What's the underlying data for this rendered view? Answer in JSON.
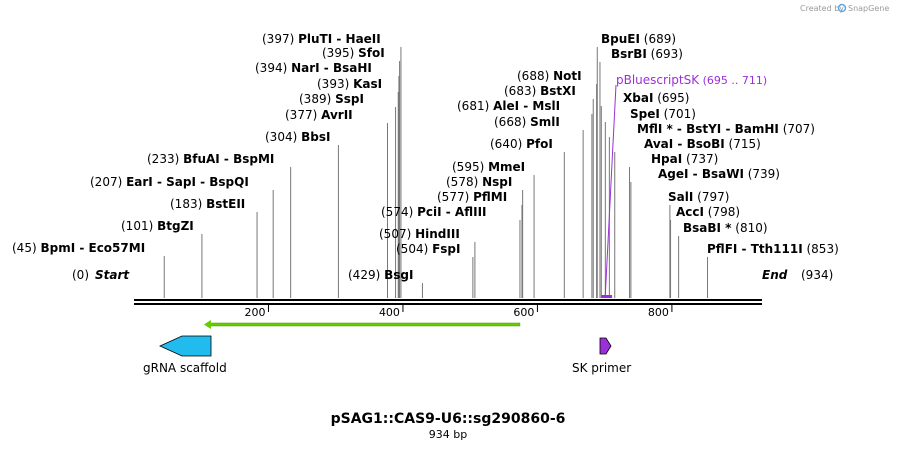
{
  "watermark": {
    "created_by": "Created by",
    "brand": "SnapGene"
  },
  "map": {
    "title": "pSAG1::CAS9-U6::sg290860-6",
    "length_label": "934 bp",
    "total_bp": 934,
    "start_label": "Start",
    "start_pos": "(0)",
    "end_label": "End",
    "end_pos": "(934)",
    "ruler_ticks": [
      "200",
      "400",
      "600",
      "800"
    ],
    "ruler_values": [
      200,
      400,
      600,
      800
    ]
  },
  "sites": [
    {
      "pos_text": "(45)",
      "names": [
        "BpmI",
        "Eco57MI"
      ],
      "cut": [
        45,
        45
      ]
    },
    {
      "pos_text": "(101)",
      "names": [
        "BtgZI"
      ],
      "cut": [
        101
      ]
    },
    {
      "pos_text": "(183)",
      "names": [
        "BstEII"
      ],
      "cut": [
        183
      ]
    },
    {
      "pos_text": "(207)",
      "names": [
        "EarI",
        "SapI",
        "BspQI"
      ],
      "cut": [
        207,
        207,
        207
      ]
    },
    {
      "pos_text": "(233)",
      "names": [
        "BfuAI",
        "BspMI"
      ],
      "cut": [
        233,
        233
      ]
    },
    {
      "pos_text": "(304)",
      "names": [
        "BbsI"
      ],
      "cut": [
        304
      ]
    },
    {
      "pos_text": "(377)",
      "names": [
        "AvrII"
      ],
      "cut": [
        377
      ]
    },
    {
      "pos_text": "(389)",
      "names": [
        "SspI"
      ],
      "cut": [
        389
      ]
    },
    {
      "pos_text": "(393)",
      "names": [
        "KasI"
      ],
      "cut": [
        393
      ]
    },
    {
      "pos_text": "(394)",
      "names": [
        "NarI",
        "BsaHI"
      ],
      "cut": [
        394,
        394
      ]
    },
    {
      "pos_text": "(395)",
      "names": [
        "SfoI"
      ],
      "cut": [
        395
      ]
    },
    {
      "pos_text": "(397)",
      "names": [
        "PluTI",
        "HaeII"
      ],
      "cut": [
        397,
        397
      ]
    },
    {
      "pos_text": "(429)",
      "names": [
        "BsgI"
      ],
      "cut": [
        429
      ]
    },
    {
      "pos_text": "(504)",
      "names": [
        "FspI"
      ],
      "cut": [
        504
      ]
    },
    {
      "pos_text": "(507)",
      "names": [
        "HindIII"
      ],
      "cut": [
        507
      ]
    },
    {
      "pos_text": "(574)",
      "names": [
        "PciI",
        "AflIII"
      ],
      "cut": [
        574,
        574
      ]
    },
    {
      "pos_text": "(577)",
      "names": [
        "PflMI"
      ],
      "cut": [
        577
      ]
    },
    {
      "pos_text": "(578)",
      "names": [
        "NspI"
      ],
      "cut": [
        578
      ]
    },
    {
      "pos_text": "(595)",
      "names": [
        "MmeI"
      ],
      "cut": [
        595
      ]
    },
    {
      "pos_text": "(640)",
      "names": [
        "PfoI"
      ],
      "cut": [
        640
      ]
    },
    {
      "pos_text": "(668)",
      "names": [
        "SmlI"
      ],
      "cut": [
        668
      ]
    },
    {
      "pos_text": "(681)",
      "names": [
        "AleI",
        "MslI"
      ],
      "cut": [
        681,
        681
      ]
    },
    {
      "pos_text": "(683)",
      "names": [
        "BstXI"
      ],
      "cut": [
        683
      ]
    },
    {
      "pos_text": "(688)",
      "names": [
        "NotI"
      ],
      "cut": [
        688
      ]
    },
    {
      "pos_text": "(689)",
      "names": [
        "BpuEI"
      ],
      "cut": [
        689
      ]
    },
    {
      "pos_text": "(693)",
      "names": [
        "BsrBI"
      ],
      "cut": [
        693
      ]
    },
    {
      "pos_text": "(695)",
      "names": [
        "XbaI"
      ],
      "cut": [
        695
      ]
    },
    {
      "pos_text": "(701)",
      "names": [
        "SpeI"
      ],
      "cut": [
        701
      ]
    },
    {
      "pos_text": "(707)",
      "names": [
        "MflI *",
        "BstYI",
        "BamHI"
      ],
      "cut": [
        707,
        707,
        707
      ]
    },
    {
      "pos_text": "(715)",
      "names": [
        "AvaI",
        "BsoBI"
      ],
      "cut": [
        715,
        715
      ]
    },
    {
      "pos_text": "(737)",
      "names": [
        "HpaI"
      ],
      "cut": [
        737
      ]
    },
    {
      "pos_text": "(739)",
      "names": [
        "AgeI",
        "BsaWI"
      ],
      "cut": [
        739,
        739
      ]
    },
    {
      "pos_text": "(797)",
      "names": [
        "SalI"
      ],
      "cut": [
        797
      ]
    },
    {
      "pos_text": "(798)",
      "names": [
        "AccI"
      ],
      "cut": [
        798
      ]
    },
    {
      "pos_text": "(810)",
      "names": [
        "BsaBI *"
      ],
      "cut": [
        810
      ]
    },
    {
      "pos_text": "(853)",
      "names": [
        "PflFI",
        "Tth111I"
      ],
      "cut": [
        853,
        853
      ]
    }
  ],
  "primer_site": {
    "name": "pBluescriptSK",
    "range_text": "(695 .. 711)",
    "start": 695,
    "end": 711,
    "color": "#9b30d9"
  },
  "features": [
    {
      "name": "gRNA scaffold",
      "color": "#22bbee",
      "direction": "reverse"
    },
    {
      "name": "SK primer",
      "color": "#9b30d9",
      "direction": "forward"
    }
  ],
  "green_span": {
    "color": "#66cc00",
    "start": 110,
    "end": 574
  },
  "colors": {
    "backbone": "#000000",
    "cutline": "#777777"
  }
}
